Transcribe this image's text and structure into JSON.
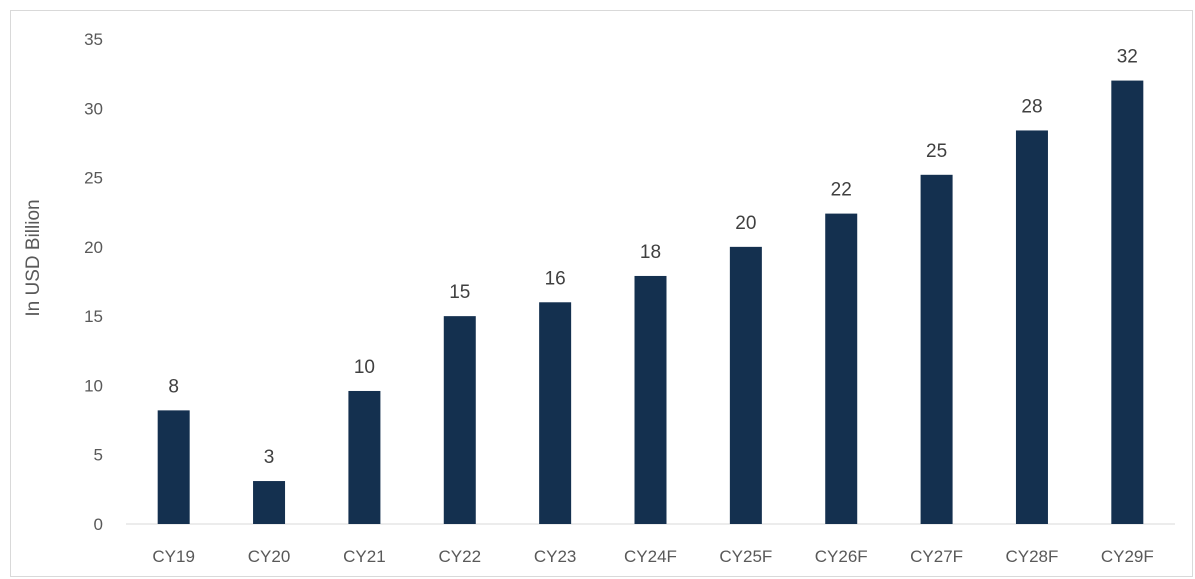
{
  "chart_data": {
    "type": "bar",
    "title": "",
    "xlabel": "",
    "ylabel": "In USD Billion",
    "categories": [
      "CY19",
      "CY20",
      "CY21",
      "CY22",
      "CY23",
      "CY24F",
      "CY25F",
      "CY26F",
      "CY27F",
      "CY28F",
      "CY29F"
    ],
    "values": [
      8.2,
      3.1,
      9.6,
      15,
      16,
      17.9,
      20,
      22.4,
      25.2,
      28.4,
      32
    ],
    "data_labels": [
      "8",
      "3",
      "10",
      "15",
      "16",
      "18",
      "20",
      "22",
      "25",
      "28",
      "32"
    ],
    "ylim": [
      0,
      35
    ],
    "yticks": [
      0,
      5,
      10,
      15,
      20,
      25,
      30,
      35
    ],
    "grid": false,
    "legend": "none",
    "bar_color": "#14304f"
  }
}
